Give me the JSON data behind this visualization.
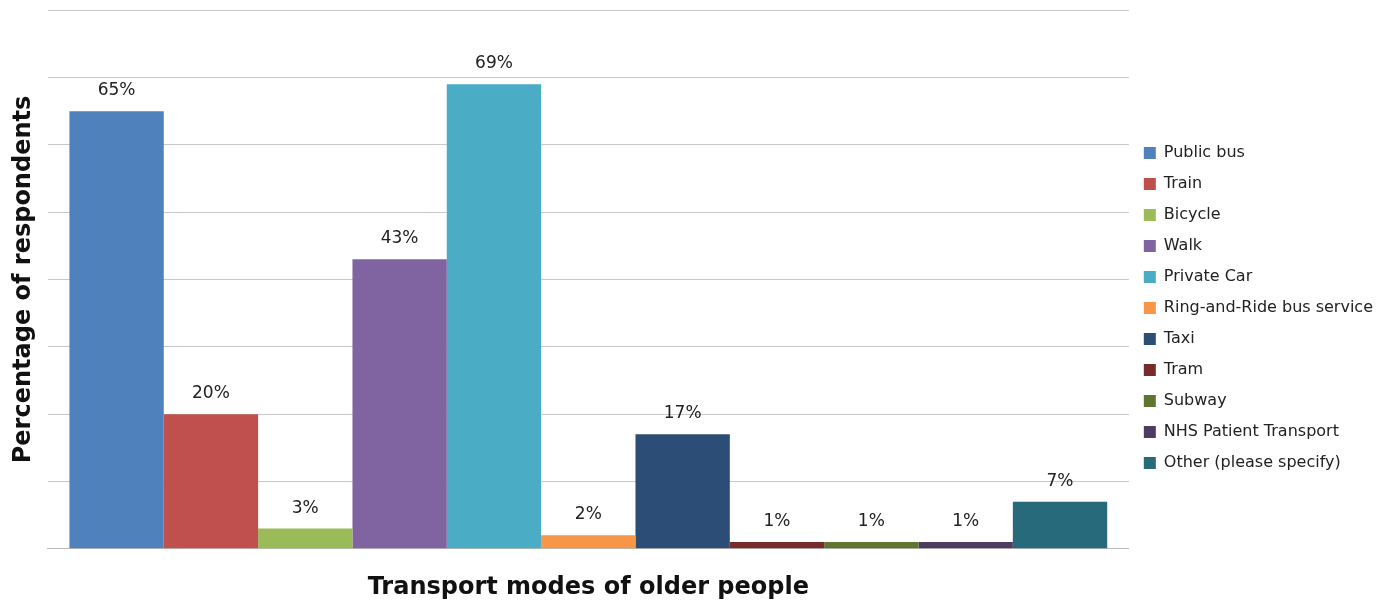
{
  "chart_data": {
    "type": "bar",
    "xlabel": "Transport modes of older people",
    "ylabel": "Percentage of respondents",
    "categories": [
      null
    ],
    "series": [
      {
        "name": "Public bus",
        "color": "#4f81bd",
        "values": [
          65
        ],
        "value_labels": [
          "65%"
        ]
      },
      {
        "name": "Train",
        "color": "#c0504d",
        "values": [
          20
        ],
        "value_labels": [
          "20%"
        ]
      },
      {
        "name": "Bicycle",
        "color": "#9bbb59",
        "values": [
          3
        ],
        "value_labels": [
          "3%"
        ]
      },
      {
        "name": "Walk",
        "color": "#8064a2",
        "values": [
          43
        ],
        "value_labels": [
          "43%"
        ]
      },
      {
        "name": "Private Car",
        "color": "#4bacc6",
        "values": [
          69
        ],
        "value_labels": [
          "69%"
        ]
      },
      {
        "name": "Ring-and-Ride bus service",
        "color": "#f79646",
        "values": [
          2
        ],
        "value_labels": [
          "2%"
        ]
      },
      {
        "name": "Taxi",
        "color": "#2c4d75",
        "values": [
          17
        ],
        "value_labels": [
          "17%"
        ]
      },
      {
        "name": "Tram",
        "color": "#772c2a",
        "values": [
          1
        ],
        "value_labels": [
          "1%"
        ]
      },
      {
        "name": "Subway",
        "color": "#5f7530",
        "values": [
          1
        ],
        "value_labels": [
          "1%"
        ]
      },
      {
        "name": "NHS Patient Transport",
        "color": "#4d3b62",
        "values": [
          1
        ],
        "value_labels": [
          "1%"
        ]
      },
      {
        "name": "Other (please specify)",
        "color": "#276a7c",
        "values": [
          7
        ],
        "value_labels": [
          "7%"
        ]
      }
    ],
    "ylim": [
      0,
      80
    ],
    "yticks": [
      {
        "value": 0,
        "label": null
      },
      {
        "value": 10,
        "label": null
      },
      {
        "value": 20,
        "label": null
      },
      {
        "value": 30,
        "label": null
      },
      {
        "value": 40,
        "label": null
      },
      {
        "value": 50,
        "label": null
      },
      {
        "value": 60,
        "label": null
      },
      {
        "value": 70,
        "label": null
      },
      {
        "value": 80,
        "label": null
      }
    ],
    "grid": "y",
    "legend": "right"
  }
}
